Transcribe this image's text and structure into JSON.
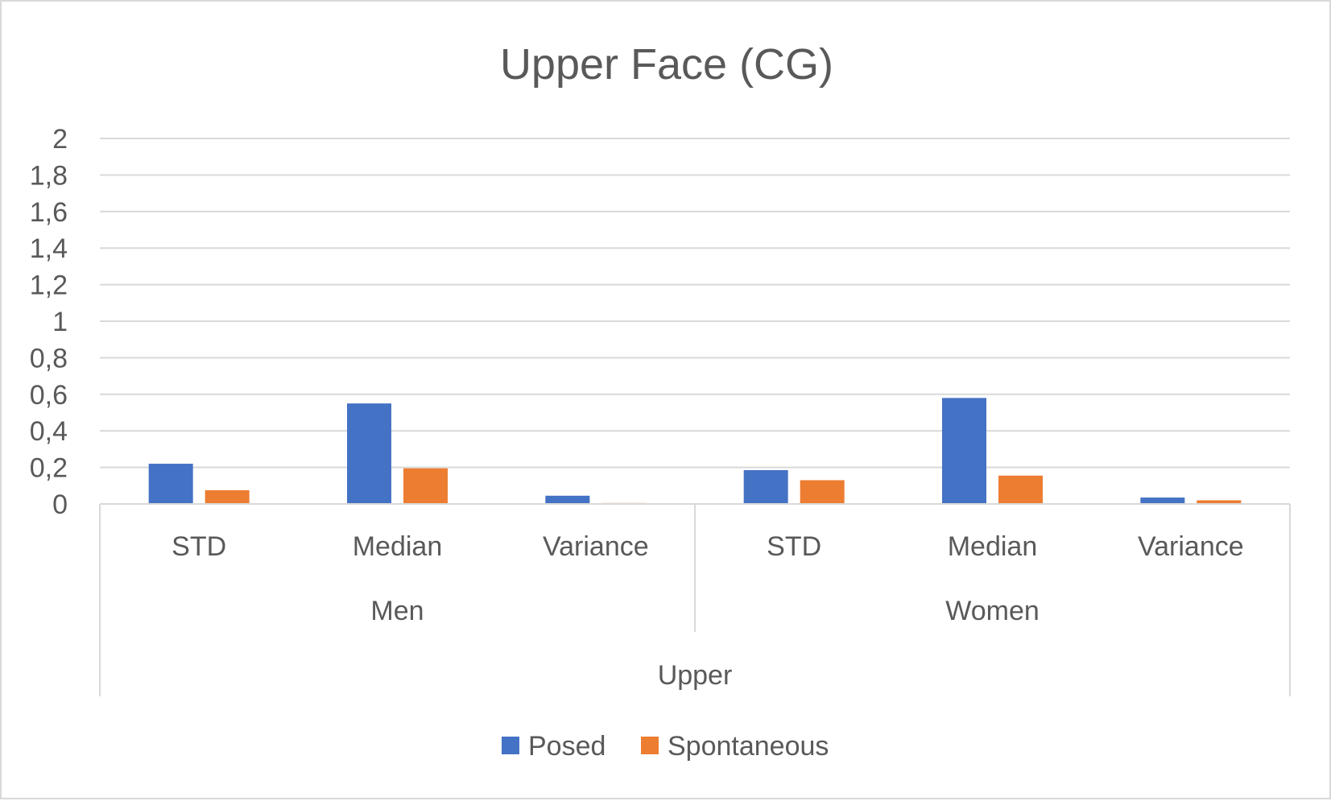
{
  "chart_data": {
    "type": "bar",
    "title": "Upper Face (CG)",
    "xlabel": "",
    "ylabel": "",
    "ylim": [
      0,
      2
    ],
    "yticks": [
      0,
      0.2,
      0.4,
      0.6,
      0.8,
      1,
      1.2,
      1.4,
      1.6,
      1.8,
      2
    ],
    "ytick_labels": [
      "0",
      "0,2",
      "0,4",
      "0,6",
      "0,8",
      "1",
      "1,2",
      "1,4",
      "1,6",
      "1,8",
      "2"
    ],
    "categories": [
      "STD",
      "Median",
      "Variance",
      "STD",
      "Median",
      "Variance"
    ],
    "category_groups": [
      {
        "label": "Men",
        "span": 3
      },
      {
        "label": "Women",
        "span": 3
      }
    ],
    "top_group": {
      "label": "Upper",
      "span": 6
    },
    "series": [
      {
        "name": "Posed",
        "color": "#4472C4",
        "values": [
          0.22,
          0.55,
          0.045,
          0.185,
          0.58,
          0.035
        ]
      },
      {
        "name": "Spontaneous",
        "color": "#ED7D31",
        "values": [
          0.075,
          0.195,
          0.005,
          0.13,
          0.155,
          0.02
        ]
      }
    ],
    "grid": true,
    "legend": "bottom-center",
    "colors": {
      "text": "#595959",
      "grid": "#d9d9d9",
      "axis": "#d9d9d9"
    }
  }
}
